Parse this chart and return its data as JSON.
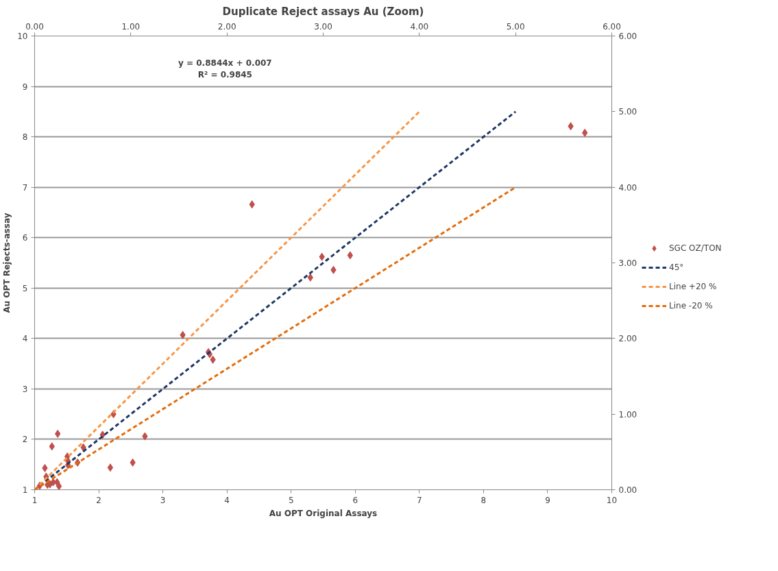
{
  "chart_data": {
    "type": "scatter",
    "title": "Duplicate Reject assays Au (Zoom)",
    "xlabel": "Au OPT Original Assays",
    "ylabel": "Au OPT Rejects-assay",
    "xlim": [
      1,
      10
    ],
    "xticks": [
      1,
      2,
      3,
      4,
      5,
      6,
      7,
      8,
      9,
      10
    ],
    "ylim": [
      1,
      10
    ],
    "yticks": [
      1,
      2,
      3,
      4,
      5,
      6,
      7,
      8,
      9,
      10
    ],
    "x2lim": [
      0,
      6
    ],
    "x2ticks": [
      {
        "value": 0,
        "label": "0.00"
      },
      {
        "value": 1,
        "label": "1.00"
      },
      {
        "value": 2,
        "label": "2.00"
      },
      {
        "value": 3,
        "label": "3.00"
      },
      {
        "value": 4,
        "label": "4.00"
      },
      {
        "value": 5,
        "label": "5.00"
      },
      {
        "value": 6,
        "label": "6.00"
      }
    ],
    "y2lim": [
      0,
      6
    ],
    "y2ticks": [
      {
        "value": 0,
        "label": "0.00"
      },
      {
        "value": 1,
        "label": "1.00"
      },
      {
        "value": 2,
        "label": "2.00"
      },
      {
        "value": 3,
        "label": "3.00"
      },
      {
        "value": 4,
        "label": "4.00"
      },
      {
        "value": 5,
        "label": "5.00"
      },
      {
        "value": 6,
        "label": "6.00"
      }
    ],
    "grid": "y",
    "legend": "right",
    "annotations": [
      "y = 0.8844x + 0.007",
      "R² = 0.9845"
    ],
    "series": [
      {
        "name": "SGC OZ/TON",
        "marker": "diamond",
        "color": "#c0504d",
        "x": [
          9.36,
          9.58,
          4.39,
          5.48,
          5.92,
          5.3,
          5.66,
          3.31,
          3.71,
          3.73,
          3.78,
          2.23,
          1.36,
          2.06,
          2.72,
          1.27,
          1.76,
          1.51,
          1.52,
          1.52,
          1.67,
          2.53,
          2.18,
          1.16,
          1.18,
          1.2,
          1.29,
          1.35,
          1.38,
          1.08,
          1.24
        ],
        "values": [
          8.21,
          8.08,
          6.66,
          5.62,
          5.65,
          5.21,
          5.36,
          4.07,
          3.73,
          3.69,
          3.58,
          2.5,
          2.11,
          2.09,
          2.06,
          1.86,
          1.84,
          1.66,
          1.57,
          1.49,
          1.54,
          1.54,
          1.44,
          1.43,
          1.26,
          1.1,
          1.15,
          1.15,
          1.07,
          1.08,
          1.11
        ]
      },
      {
        "name": "45°",
        "type": "line",
        "marker": "none",
        "line_style": "dashed",
        "color": "#1f3864",
        "x": [
          1,
          8.5
        ],
        "values": [
          1,
          8.5
        ]
      },
      {
        "name": "Line +20 %",
        "type": "line",
        "marker": "none",
        "line_style": "dashed",
        "color": "#f79646",
        "x": [
          1,
          7
        ],
        "values": [
          1,
          8.5
        ]
      },
      {
        "name": "Line -20 %",
        "type": "line",
        "marker": "none",
        "line_style": "dashed",
        "color": "#e46c0a",
        "x": [
          1,
          8.5
        ],
        "values": [
          1,
          7
        ]
      }
    ]
  }
}
